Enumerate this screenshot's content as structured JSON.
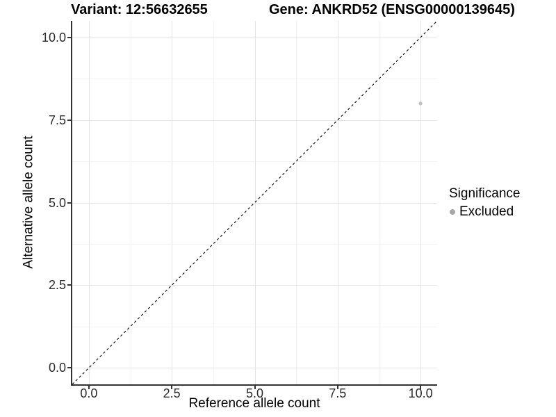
{
  "figure": {
    "title_left": "Variant: 12:56632655",
    "title_right": "Gene: ANKRD52 (ENSG00000139645)"
  },
  "chart_data": {
    "type": "scatter",
    "title": "Variant: 12:56632655 / Gene: ANKRD52 (ENSG00000139645)",
    "xlabel": "Reference allele count",
    "ylabel": "Alternative allele count",
    "xlim": [
      -0.5,
      10.5
    ],
    "ylim": [
      -0.5,
      10.5
    ],
    "x_major_ticks": [
      0,
      2.5,
      5,
      7.5,
      10
    ],
    "x_minor_ticks": [
      1.25,
      3.75,
      6.25,
      8.75
    ],
    "y_major_ticks": [
      0,
      2.5,
      5,
      7.5,
      10
    ],
    "y_minor_ticks": [
      1.25,
      3.75,
      6.25,
      8.75
    ],
    "x_tick_labels": [
      "0.0",
      "2.5",
      "5.0",
      "7.5",
      "10.0"
    ],
    "y_tick_labels": [
      "0.0",
      "2.5",
      "5.0",
      "7.5",
      "10.0"
    ],
    "grid": {
      "on": true,
      "major_color": "#e4e4e4",
      "minor_color": "#f2f2f2",
      "background": "#ffffff"
    },
    "axis_color": "#333333",
    "identity_line": {
      "style": "dashed",
      "color": "#000000",
      "from": [
        -0.5,
        -0.5
      ],
      "to": [
        10.5,
        10.5
      ]
    },
    "series": [
      {
        "name": "Excluded",
        "color": "#c3c3c3",
        "points": [
          {
            "x": 10,
            "y": 8
          }
        ]
      }
    ],
    "legend": {
      "title": "Significance",
      "position": "right",
      "entries": [
        {
          "label": "Excluded",
          "color": "#a8a8a8"
        }
      ]
    }
  }
}
